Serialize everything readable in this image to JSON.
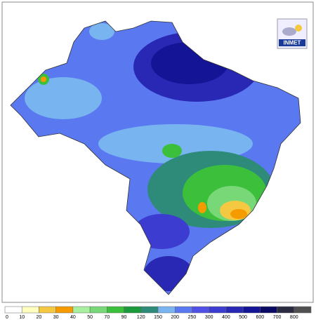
{
  "logo": {
    "text": "INMET"
  },
  "legend": {
    "items": [
      {
        "label": 0,
        "color": "#ffffff"
      },
      {
        "label": 10,
        "color": "#ffffc0"
      },
      {
        "label": 20,
        "color": "#f5c842"
      },
      {
        "label": 30,
        "color": "#f59b00"
      },
      {
        "label": 40,
        "color": "#a8f0a0"
      },
      {
        "label": 50,
        "color": "#78d878"
      },
      {
        "label": 70,
        "color": "#3cc03c"
      },
      {
        "label": 90,
        "color": "#1a9a3a"
      },
      {
        "label": 120,
        "color": "#2e8b7a"
      },
      {
        "label": 150,
        "color": "#78b4f0"
      },
      {
        "label": 200,
        "color": "#5a78f0"
      },
      {
        "label": 250,
        "color": "#5050e6"
      },
      {
        "label": 300,
        "color": "#3c3cd0"
      },
      {
        "label": 400,
        "color": "#2828b4"
      },
      {
        "label": 500,
        "color": "#141496"
      },
      {
        "label": 600,
        "color": "#0a0a64"
      },
      {
        "label": 700,
        "color": "#2a2a40"
      },
      {
        "label": 800,
        "color": "#505050"
      }
    ]
  }
}
